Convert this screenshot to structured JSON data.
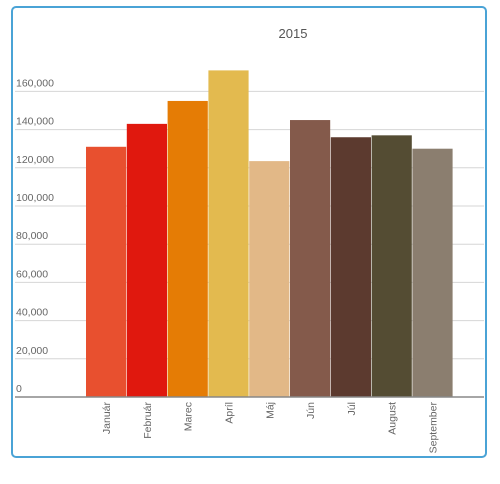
{
  "chart_data": {
    "type": "bar",
    "title": "2015",
    "xlabel": "",
    "ylabel": "",
    "categories": [
      "Január",
      "Február",
      "Marec",
      "Apríl",
      "Máj",
      "Jún",
      "Júl",
      "August",
      "September"
    ],
    "values": [
      131000,
      143000,
      155000,
      171000,
      123500,
      145000,
      136000,
      137000,
      130000
    ],
    "colors": [
      "#e8502f",
      "#e0180e",
      "#e57c05",
      "#e3ba4f",
      "#e2b887",
      "#845a4b",
      "#5c3a2f",
      "#544c33",
      "#8b7e6f"
    ],
    "ylim": [
      0,
      180000
    ],
    "yticks": [
      0,
      20000,
      40000,
      60000,
      80000,
      100000,
      120000,
      140000,
      160000
    ],
    "ytick_labels": [
      "0",
      "20,000",
      "40,000",
      "60,000",
      "80,000",
      "100,000",
      "120,000",
      "140,000",
      "160,000"
    ],
    "grid": true,
    "legend": "none"
  }
}
